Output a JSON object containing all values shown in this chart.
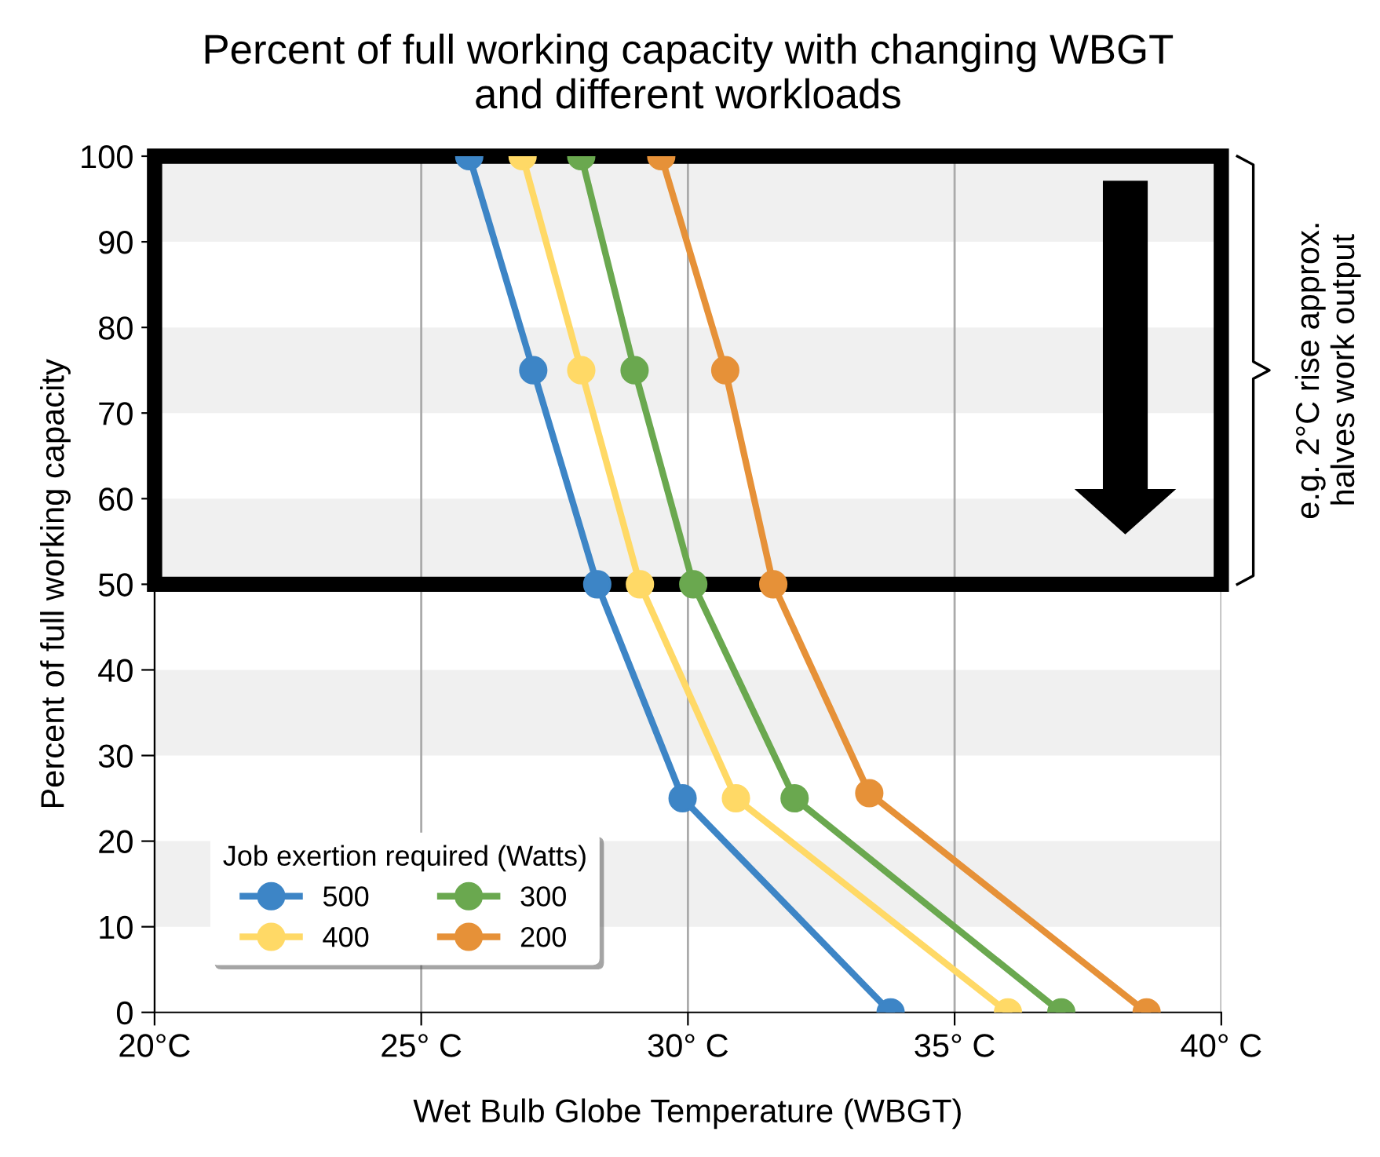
{
  "chart_data": {
    "type": "line",
    "title": "Percent of full working capacity with changing WBGT\nand different workloads",
    "xlabel": "Wet Bulb Globe Temperature (WBGT)",
    "ylabel": "Percent of full working capacity",
    "legend_title": "Job exertion required (Watts)",
    "xlim": [
      20,
      40
    ],
    "xticks": [
      {
        "value": 20,
        "label": "20°C"
      },
      {
        "value": 25,
        "label": "25° C"
      },
      {
        "value": 30,
        "label": "30° C"
      },
      {
        "value": 35,
        "label": "35° C"
      },
      {
        "value": 40,
        "label": "40° C"
      }
    ],
    "ylim": [
      0,
      100
    ],
    "yticks": [
      0,
      10,
      20,
      30,
      40,
      50,
      60,
      70,
      80,
      90,
      100
    ],
    "grid": "x",
    "legend": "bottom left",
    "marker": "circle",
    "line_style": "solid",
    "bands": [
      {
        "axis": "y",
        "from": 10,
        "to": 20,
        "color": "#f0f0f0"
      },
      {
        "axis": "y",
        "from": 30,
        "to": 40,
        "color": "#f0f0f0"
      },
      {
        "axis": "y",
        "from": 50,
        "to": 60,
        "color": "#f0f0f0"
      },
      {
        "axis": "y",
        "from": 70,
        "to": 80,
        "color": "#f0f0f0"
      },
      {
        "axis": "y",
        "from": 90,
        "to": 100,
        "color": "#f0f0f0"
      }
    ],
    "annotations": [
      "e.g. 2°C rise approx.\nhalves work output"
    ],
    "series": [
      {
        "name": "500",
        "color": "#3d85c6",
        "x": [
          25.9,
          27.1,
          28.3,
          29.9,
          33.8
        ],
        "values": [
          100,
          75,
          50,
          25,
          0
        ]
      },
      {
        "name": "400",
        "color": "#ffd966",
        "x": [
          26.9,
          28.0,
          29.1,
          30.9,
          36.0
        ],
        "values": [
          100,
          75,
          50,
          25,
          0
        ]
      },
      {
        "name": "300",
        "color": "#6aa84f",
        "x": [
          28.0,
          29.0,
          30.1,
          32.0,
          37.0
        ],
        "values": [
          100,
          75,
          50,
          25,
          0
        ]
      },
      {
        "name": "200",
        "color": "#e69138",
        "x": [
          29.5,
          30.7,
          31.6,
          33.4,
          38.6
        ],
        "values": [
          100,
          75,
          50,
          25.6,
          0
        ]
      }
    ]
  }
}
